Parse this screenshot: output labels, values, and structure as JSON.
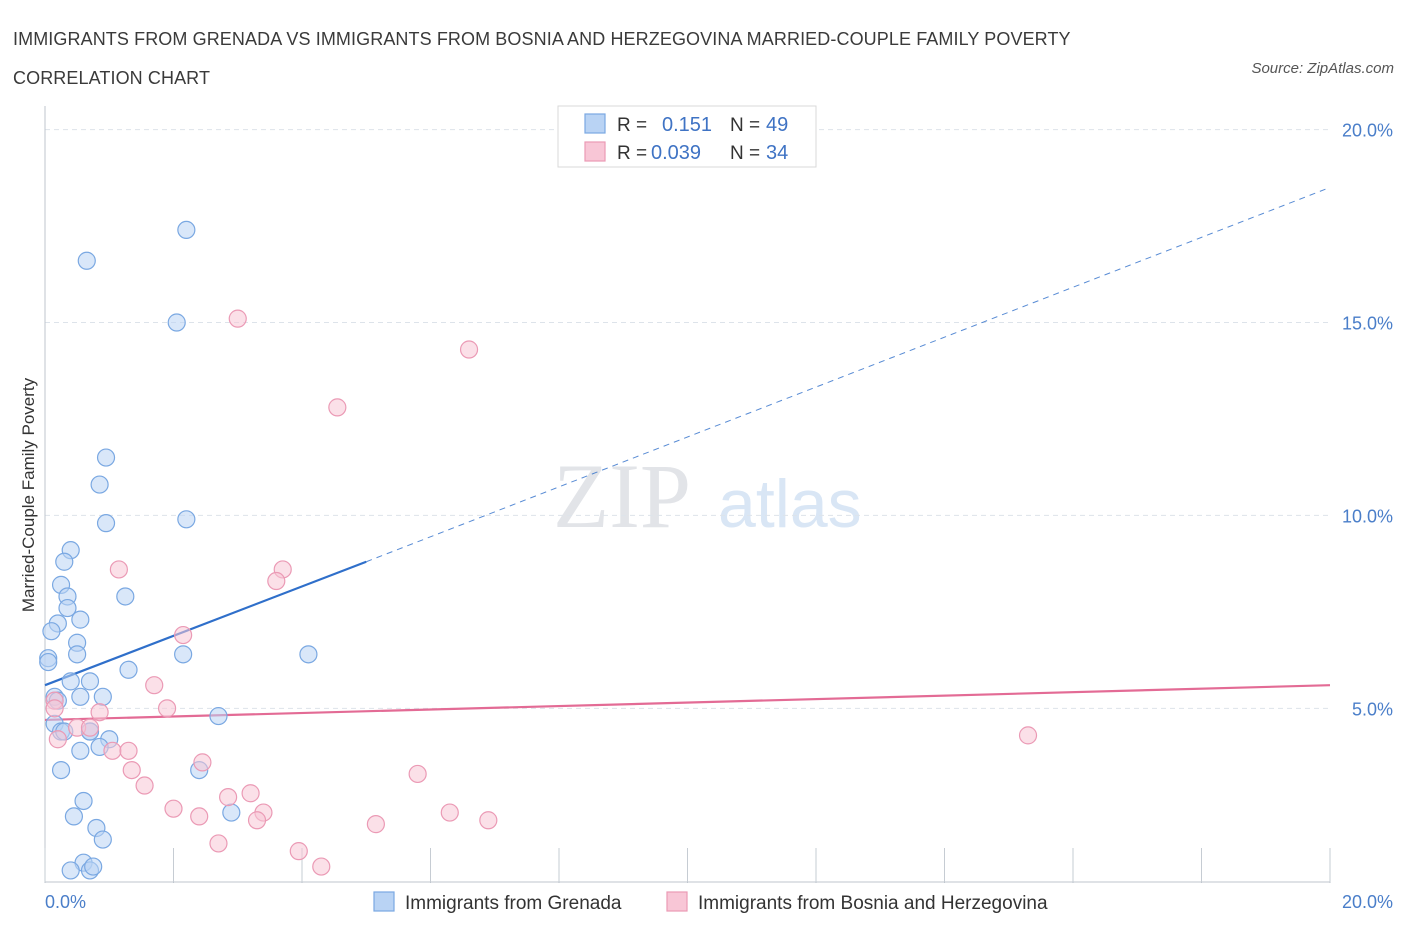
{
  "title": "IMMIGRANTS FROM GRENADA VS IMMIGRANTS FROM BOSNIA AND HERZEGOVINA MARRIED-COUPLE FAMILY POVERTY CORRELATION CHART",
  "source": "Source: ZipAtlas.com",
  "watermark": {
    "zip": "ZIP",
    "atlas": "atlas"
  },
  "colors": {
    "blue_fill": "#b9d3f4",
    "blue_stroke": "#7aa8e2",
    "blue_line": "#2f6fca",
    "pink_fill": "#f8c6d6",
    "pink_stroke": "#eb9ab5",
    "pink_line": "#e36b95",
    "grid": "#dde3ea",
    "tick_text": "#4a7ec9"
  },
  "chart_data": {
    "type": "scatter",
    "title": "Immigrants from Grenada vs Immigrants from Bosnia and Herzegovina Married-Couple Family Poverty Correlation Chart",
    "ylabel": "Married-Couple Family Poverty",
    "xlabel": "",
    "xlim": [
      0,
      20
    ],
    "ylim": [
      0,
      20
    ],
    "x_tick_labels": [
      "0.0%",
      "20.0%"
    ],
    "y_ticks": [
      5,
      10,
      15,
      20
    ],
    "y_tick_labels": [
      "5.0%",
      "10.0%",
      "15.0%",
      "20.0%"
    ],
    "legend": [
      {
        "r_label": "R =",
        "r_value": "0.151",
        "n_label": "N =",
        "n_value": "49"
      },
      {
        "r_label": "R =",
        "r_value": "0.039",
        "n_label": "N =",
        "n_value": "34"
      }
    ],
    "series": [
      {
        "name": "Immigrants from Grenada",
        "color": "blue",
        "trend": {
          "x0": 0,
          "y0": 5.6,
          "x1": 5.0,
          "y1": 8.8,
          "extend_to_x": 20,
          "extend_to_y": 18.5
        },
        "points": [
          [
            2.2,
            17.4
          ],
          [
            0.65,
            16.6
          ],
          [
            2.05,
            15.0
          ],
          [
            0.95,
            11.5
          ],
          [
            0.85,
            10.8
          ],
          [
            2.2,
            9.9
          ],
          [
            0.95,
            9.8
          ],
          [
            0.4,
            9.1
          ],
          [
            0.3,
            8.8
          ],
          [
            0.25,
            8.2
          ],
          [
            0.35,
            7.9
          ],
          [
            1.25,
            7.9
          ],
          [
            0.35,
            7.6
          ],
          [
            0.55,
            7.3
          ],
          [
            0.2,
            7.2
          ],
          [
            0.1,
            7.0
          ],
          [
            0.5,
            6.7
          ],
          [
            0.5,
            6.4
          ],
          [
            2.15,
            6.4
          ],
          [
            4.1,
            6.4
          ],
          [
            0.05,
            6.3
          ],
          [
            0.05,
            6.2
          ],
          [
            1.3,
            6.0
          ],
          [
            0.4,
            5.7
          ],
          [
            0.7,
            5.7
          ],
          [
            0.55,
            5.3
          ],
          [
            0.9,
            5.3
          ],
          [
            0.15,
            5.3
          ],
          [
            0.2,
            5.2
          ],
          [
            2.7,
            4.8
          ],
          [
            0.15,
            4.6
          ],
          [
            0.7,
            4.4
          ],
          [
            0.25,
            4.4
          ],
          [
            1.0,
            4.2
          ],
          [
            0.85,
            4.0
          ],
          [
            0.55,
            3.9
          ],
          [
            0.25,
            3.4
          ],
          [
            2.4,
            3.4
          ],
          [
            0.6,
            2.6
          ],
          [
            0.45,
            2.2
          ],
          [
            2.9,
            2.3
          ],
          [
            0.8,
            1.9
          ],
          [
            0.9,
            1.6
          ],
          [
            0.6,
            1.0
          ],
          [
            0.4,
            0.8
          ],
          [
            0.7,
            0.8
          ],
          [
            0.75,
            0.9
          ],
          [
            0.7,
            4.4
          ],
          [
            0.3,
            4.4
          ]
        ]
      },
      {
        "name": "Immigrants from Bosnia and Herzegovina",
        "color": "pink",
        "trend": {
          "x0": 0,
          "y0": 4.7,
          "x1": 20,
          "y1": 5.6
        },
        "points": [
          [
            3.0,
            15.1
          ],
          [
            6.6,
            14.3
          ],
          [
            4.55,
            12.8
          ],
          [
            1.15,
            8.6
          ],
          [
            3.7,
            8.6
          ],
          [
            3.6,
            8.3
          ],
          [
            2.15,
            6.9
          ],
          [
            1.7,
            5.6
          ],
          [
            1.9,
            5.0
          ],
          [
            0.15,
            5.2
          ],
          [
            0.15,
            5.0
          ],
          [
            0.85,
            4.9
          ],
          [
            0.5,
            4.5
          ],
          [
            0.7,
            4.5
          ],
          [
            0.2,
            4.2
          ],
          [
            1.05,
            3.9
          ],
          [
            1.3,
            3.9
          ],
          [
            2.45,
            3.6
          ],
          [
            1.35,
            3.4
          ],
          [
            5.8,
            3.3
          ],
          [
            1.55,
            3.0
          ],
          [
            3.2,
            2.8
          ],
          [
            2.85,
            2.7
          ],
          [
            2.0,
            2.4
          ],
          [
            3.4,
            2.3
          ],
          [
            6.3,
            2.3
          ],
          [
            2.4,
            2.2
          ],
          [
            6.9,
            2.1
          ],
          [
            3.3,
            2.1
          ],
          [
            5.15,
            2.0
          ],
          [
            2.7,
            1.5
          ],
          [
            3.95,
            1.3
          ],
          [
            4.3,
            0.9
          ],
          [
            15.3,
            4.3
          ]
        ]
      }
    ]
  }
}
